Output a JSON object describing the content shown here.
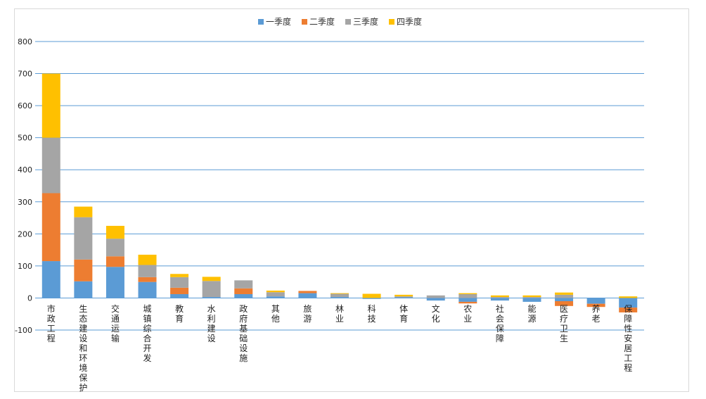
{
  "chart_data": {
    "type": "bar",
    "stacked": true,
    "categories": [
      "市政工程",
      "生态建设和环境保护",
      "交通运输",
      "城镇综合开发",
      "教育",
      "水利建设",
      "政府基础设施",
      "其他",
      "旅游",
      "林业",
      "科技",
      "体育",
      "文化",
      "农业",
      "社会保障",
      "能源",
      "医疗卫生",
      "养老",
      "保障性安居工程"
    ],
    "series": [
      {
        "name": "一季度",
        "color": "#5b9bd5",
        "values": [
          115,
          52,
          97,
          50,
          12,
          3,
          12,
          5,
          15,
          3,
          -3,
          2,
          -8,
          -12,
          -8,
          -12,
          -10,
          -18,
          -30
        ]
      },
      {
        "name": "二季度",
        "color": "#ed7d31",
        "values": [
          212,
          68,
          33,
          15,
          20,
          0,
          18,
          0,
          7,
          0,
          0,
          0,
          0,
          -5,
          0,
          0,
          -15,
          -10,
          -15
        ]
      },
      {
        "name": "三季度",
        "color": "#a5a5a5",
        "values": [
          173,
          132,
          55,
          38,
          33,
          50,
          25,
          13,
          0,
          10,
          0,
          3,
          8,
          12,
          3,
          3,
          10,
          0,
          0
        ]
      },
      {
        "name": "四季度",
        "color": "#ffc000",
        "values": [
          200,
          33,
          40,
          32,
          10,
          13,
          0,
          5,
          0,
          2,
          13,
          5,
          0,
          3,
          5,
          5,
          7,
          0,
          5
        ]
      }
    ],
    "y_ticks": [
      "-100",
      "0",
      "100",
      "200",
      "300",
      "400",
      "500",
      "600",
      "700",
      "800"
    ],
    "ylim": [
      -100,
      800
    ],
    "grid": true,
    "legend": "top-center",
    "title": "",
    "xlabel": "",
    "ylabel": ""
  }
}
